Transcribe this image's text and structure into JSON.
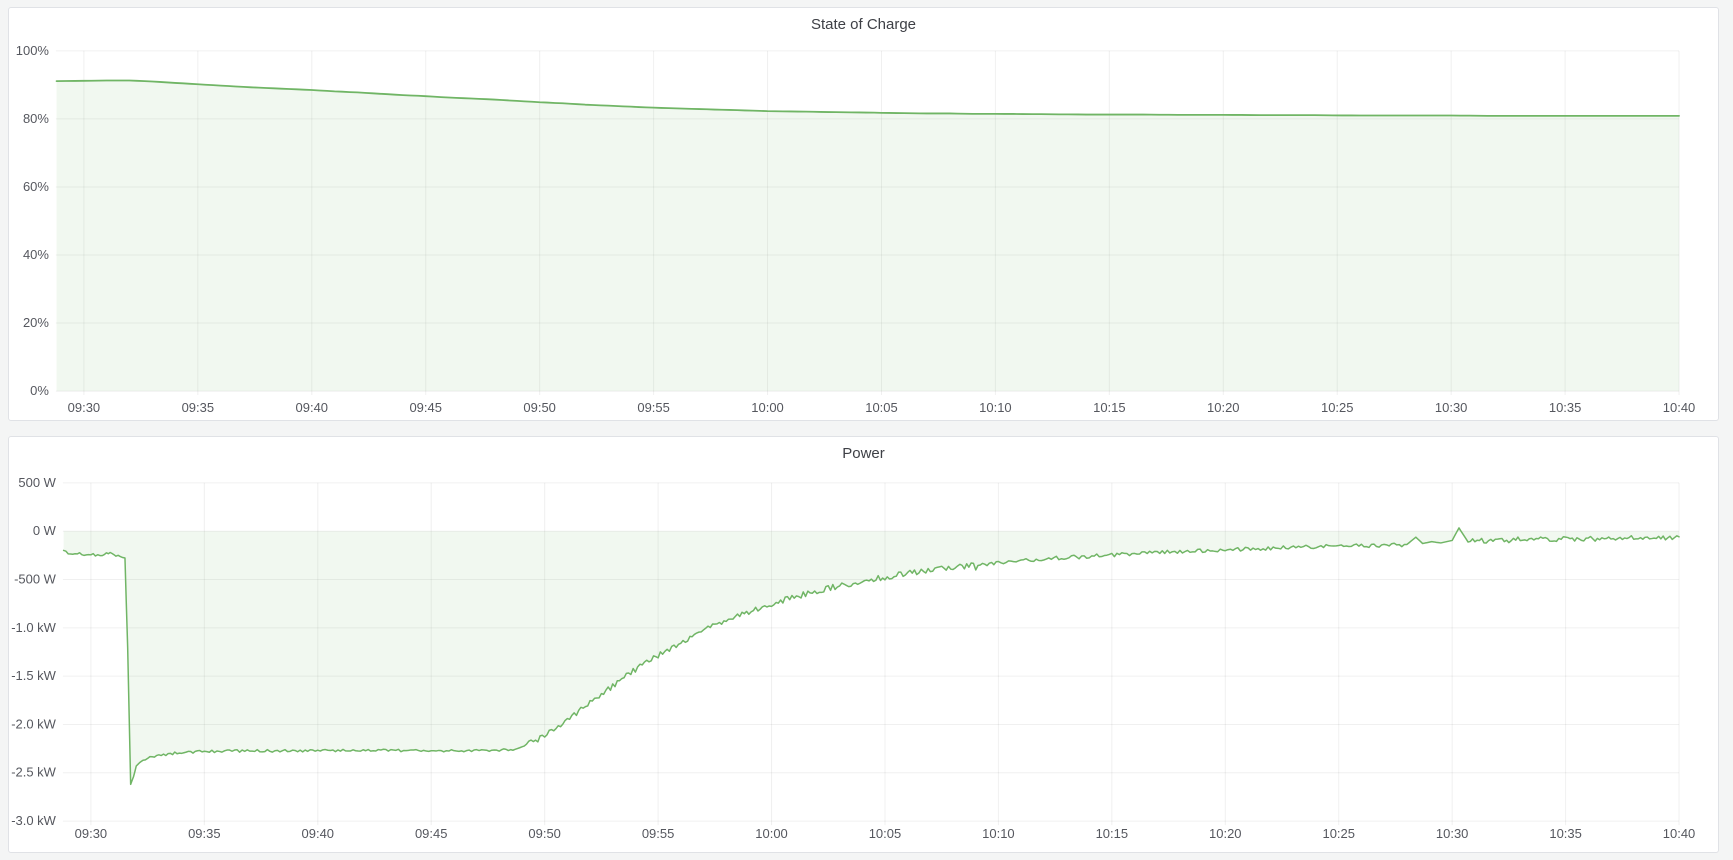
{
  "page": {
    "background_color": "#f4f5f5",
    "panel_background": "#ffffff",
    "panel_border_color": "#e0e2e6",
    "grid_color": "rgba(36,41,46,0.07)",
    "axis_text_color": "#55575e",
    "title_text_color": "#3e4046",
    "accent_green": "#73bf69"
  },
  "chart_data": [
    {
      "type": "area",
      "title": "State of Charge",
      "grid": true,
      "legend": "none",
      "x_axis": {
        "tick_labels": [
          "09:30",
          "09:35",
          "09:40",
          "09:45",
          "09:50",
          "09:55",
          "10:00",
          "10:05",
          "10:10",
          "10:15",
          "10:20",
          "10:25",
          "10:30",
          "10:35",
          "10:40"
        ],
        "tick_minutes": [
          0,
          5,
          10,
          15,
          20,
          25,
          30,
          35,
          40,
          45,
          50,
          55,
          60,
          65,
          70
        ],
        "domain_start_minute": -1.25
      },
      "y_axis": {
        "lim": [
          0,
          100
        ],
        "unit": "percent",
        "ticks": [
          {
            "v": 100,
            "label": "100%"
          },
          {
            "v": 80,
            "label": "80%"
          },
          {
            "v": 60,
            "label": "60%"
          },
          {
            "v": 40,
            "label": "40%"
          },
          {
            "v": 20,
            "label": "20%"
          },
          {
            "v": 0,
            "label": "0%"
          }
        ]
      },
      "sample_step": 0.4,
      "series": [
        {
          "name": "State of Charge",
          "color": "#70b565",
          "fill": "rgba(115,191,105,0.10)",
          "line_width": 1.8,
          "points": [
            [
              -1.2,
              91.1
            ],
            [
              0,
              91.2
            ],
            [
              1,
              91.3
            ],
            [
              2,
              91.3
            ],
            [
              3,
              91.0
            ],
            [
              4,
              90.6
            ],
            [
              5,
              90.2
            ],
            [
              6,
              89.8
            ],
            [
              7,
              89.4
            ],
            [
              8,
              89.1
            ],
            [
              9,
              88.8
            ],
            [
              10,
              88.5
            ],
            [
              11,
              88.1
            ],
            [
              12,
              87.8
            ],
            [
              13,
              87.4
            ],
            [
              14,
              87.0
            ],
            [
              15,
              86.7
            ],
            [
              16,
              86.3
            ],
            [
              17,
              86.0
            ],
            [
              18,
              85.7
            ],
            [
              19,
              85.3
            ],
            [
              20,
              84.9
            ],
            [
              21,
              84.6
            ],
            [
              22,
              84.2
            ],
            [
              23,
              83.9
            ],
            [
              24,
              83.6
            ],
            [
              25,
              83.3
            ],
            [
              26,
              83.1
            ],
            [
              27,
              82.9
            ],
            [
              28,
              82.7
            ],
            [
              29,
              82.5
            ],
            [
              30,
              82.3
            ],
            [
              31,
              82.2
            ],
            [
              32,
              82.1
            ],
            [
              33,
              82.0
            ],
            [
              34,
              81.9
            ],
            [
              35,
              81.8
            ],
            [
              36,
              81.7
            ],
            [
              37,
              81.6
            ],
            [
              38,
              81.6
            ],
            [
              39,
              81.5
            ],
            [
              40,
              81.5
            ],
            [
              42,
              81.4
            ],
            [
              44,
              81.3
            ],
            [
              46,
              81.3
            ],
            [
              48,
              81.2
            ],
            [
              50,
              81.2
            ],
            [
              52,
              81.1
            ],
            [
              54,
              81.1
            ],
            [
              56,
              81.0
            ],
            [
              58,
              81.0
            ],
            [
              60,
              81.0
            ],
            [
              62,
              80.9
            ],
            [
              64,
              80.9
            ],
            [
              66,
              80.9
            ],
            [
              68,
              80.9
            ],
            [
              70,
              80.9
            ]
          ]
        }
      ]
    },
    {
      "type": "area",
      "title": "Power",
      "grid": true,
      "legend": "none",
      "x_axis": {
        "tick_labels": [
          "09:30",
          "09:35",
          "09:40",
          "09:45",
          "09:50",
          "09:55",
          "10:00",
          "10:05",
          "10:10",
          "10:15",
          "10:20",
          "10:25",
          "10:30",
          "10:35",
          "10:40"
        ],
        "tick_minutes": [
          0,
          5,
          10,
          15,
          20,
          25,
          30,
          35,
          40,
          45,
          50,
          55,
          60,
          65,
          70
        ],
        "domain_start_minute": -1.25
      },
      "y_axis": {
        "lim": [
          -3000,
          500
        ],
        "unit": "watt",
        "ticks": [
          {
            "v": 500,
            "label": "500 W"
          },
          {
            "v": 0,
            "label": "0 W"
          },
          {
            "v": -500,
            "label": "-500 W"
          },
          {
            "v": -1000,
            "label": "-1.0 kW"
          },
          {
            "v": -1500,
            "label": "-1.5 kW"
          },
          {
            "v": -2000,
            "label": "-2.0 kW"
          },
          {
            "v": -2500,
            "label": "-2.5 kW"
          },
          {
            "v": -3000,
            "label": "-3.0 kW"
          }
        ]
      },
      "sample_step": 0.115,
      "series": [
        {
          "name": "Power",
          "color": "#70b565",
          "fill": "rgba(115,191,105,0.10)",
          "line_width": 1.5,
          "jitter": [
            {
              "from": -1.25,
              "to": 1.5,
              "amp": 11
            },
            {
              "from": 2.4,
              "to": 18.6,
              "amp": 13
            },
            {
              "from": 19.2,
              "to": 39,
              "amp": 30
            },
            {
              "from": 39,
              "to": 57.8,
              "amp": 21
            },
            {
              "from": 60.9,
              "to": 70,
              "amp": 24
            }
          ],
          "points": [
            [
              -1.2,
              -205
            ],
            [
              -0.9,
              -240
            ],
            [
              -0.6,
              -225
            ],
            [
              -0.3,
              -250
            ],
            [
              0,
              -238
            ],
            [
              0.3,
              -252
            ],
            [
              0.6,
              -240
            ],
            [
              0.85,
              -222
            ],
            [
              1.1,
              -248
            ],
            [
              1.3,
              -262
            ],
            [
              1.5,
              -268
            ],
            [
              1.62,
              -1200
            ],
            [
              1.75,
              -2620
            ],
            [
              1.88,
              -2540
            ],
            [
              2.0,
              -2430
            ],
            [
              2.15,
              -2395
            ],
            [
              2.3,
              -2370
            ],
            [
              2.6,
              -2345
            ],
            [
              3.0,
              -2320
            ],
            [
              3.5,
              -2302
            ],
            [
              4.0,
              -2292
            ],
            [
              4.5,
              -2286
            ],
            [
              5.0,
              -2280
            ],
            [
              6,
              -2276
            ],
            [
              7,
              -2273
            ],
            [
              8,
              -2274
            ],
            [
              9,
              -2271
            ],
            [
              10,
              -2272
            ],
            [
              11,
              -2270
            ],
            [
              12,
              -2271
            ],
            [
              13,
              -2269
            ],
            [
              14,
              -2270
            ],
            [
              15,
              -2269
            ],
            [
              16,
              -2271
            ],
            [
              17,
              -2269
            ],
            [
              18,
              -2267
            ],
            [
              18.7,
              -2258
            ],
            [
              19.2,
              -2215
            ],
            [
              19.6,
              -2165
            ],
            [
              20,
              -2110
            ],
            [
              20.5,
              -2032
            ],
            [
              21,
              -1950
            ],
            [
              21.5,
              -1862
            ],
            [
              22,
              -1775
            ],
            [
              22.5,
              -1688
            ],
            [
              23,
              -1600
            ],
            [
              23.5,
              -1516
            ],
            [
              24,
              -1435
            ],
            [
              24.5,
              -1358
            ],
            [
              25,
              -1285
            ],
            [
              25.5,
              -1215
            ],
            [
              26,
              -1150
            ],
            [
              26.5,
              -1088
            ],
            [
              27,
              -1030
            ],
            [
              27.5,
              -976
            ],
            [
              28,
              -925
            ],
            [
              28.5,
              -877
            ],
            [
              29,
              -832
            ],
            [
              29.5,
              -791
            ],
            [
              30,
              -752
            ],
            [
              30.5,
              -716
            ],
            [
              31,
              -682
            ],
            [
              31.5,
              -650
            ],
            [
              32,
              -620
            ],
            [
              32.5,
              -592
            ],
            [
              33,
              -565
            ],
            [
              33.5,
              -540
            ],
            [
              34,
              -517
            ],
            [
              34.5,
              -495
            ],
            [
              35,
              -475
            ],
            [
              35.5,
              -456
            ],
            [
              36,
              -438
            ],
            [
              36.5,
              -421
            ],
            [
              37,
              -405
            ],
            [
              37.5,
              -390
            ],
            [
              38,
              -376
            ],
            [
              38.5,
              -363
            ],
            [
              39,
              -351
            ],
            [
              39.5,
              -340
            ],
            [
              40,
              -329
            ],
            [
              41,
              -308
            ],
            [
              42,
              -290
            ],
            [
              43,
              -273
            ],
            [
              44,
              -258
            ],
            [
              45,
              -244
            ],
            [
              46,
              -232
            ],
            [
              47,
              -220
            ],
            [
              48,
              -210
            ],
            [
              49,
              -200
            ],
            [
              50,
              -191
            ],
            [
              51,
              -183
            ],
            [
              52,
              -175
            ],
            [
              53,
              -168
            ],
            [
              54,
              -161
            ],
            [
              55,
              -155
            ],
            [
              56,
              -149
            ],
            [
              57,
              -143
            ],
            [
              58,
              -138
            ],
            [
              58.4,
              -62
            ],
            [
              58.7,
              -128
            ],
            [
              59.1,
              -108
            ],
            [
              59.5,
              -122
            ],
            [
              60,
              -96
            ],
            [
              60.3,
              34
            ],
            [
              60.7,
              -112
            ],
            [
              61.1,
              -88
            ],
            [
              61.6,
              -104
            ],
            [
              62,
              -84
            ],
            [
              62.5,
              -98
            ],
            [
              63,
              -78
            ],
            [
              63.5,
              -94
            ],
            [
              64,
              -74
            ],
            [
              64.5,
              -90
            ],
            [
              65,
              -70
            ],
            [
              65.5,
              -86
            ],
            [
              66,
              -72
            ],
            [
              66.5,
              -88
            ],
            [
              67,
              -67
            ],
            [
              67.5,
              -83
            ],
            [
              68,
              -64
            ],
            [
              68.5,
              -80
            ],
            [
              69,
              -61
            ],
            [
              69.5,
              -77
            ],
            [
              70,
              -68
            ]
          ]
        }
      ]
    }
  ]
}
